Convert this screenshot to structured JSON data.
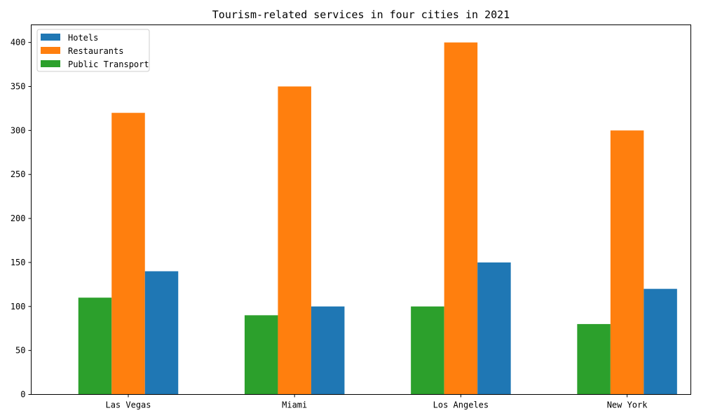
{
  "chart_data": {
    "type": "bar",
    "title": "Tourism-related services in four cities in 2021",
    "xlabel": "",
    "ylabel": "",
    "categories": [
      "Las Vegas",
      "Miami",
      "Los Angeles",
      "New York"
    ],
    "ylim": [
      0,
      420
    ],
    "yticks": [
      0,
      50,
      100,
      150,
      200,
      250,
      300,
      350,
      400
    ],
    "grid": false,
    "legend_position": "top-left",
    "series": [
      {
        "name": "Hotels",
        "color": "#1f77b4",
        "values": [
          140,
          100,
          150,
          120
        ]
      },
      {
        "name": "Restaurants",
        "color": "#ff7f0e",
        "values": [
          320,
          350,
          400,
          300
        ]
      },
      {
        "name": "Public Transport",
        "color": "#2ca02c",
        "values": [
          110,
          90,
          100,
          80
        ]
      }
    ],
    "draw_order": [
      "Public Transport",
      "Restaurants",
      "Hotels"
    ]
  }
}
